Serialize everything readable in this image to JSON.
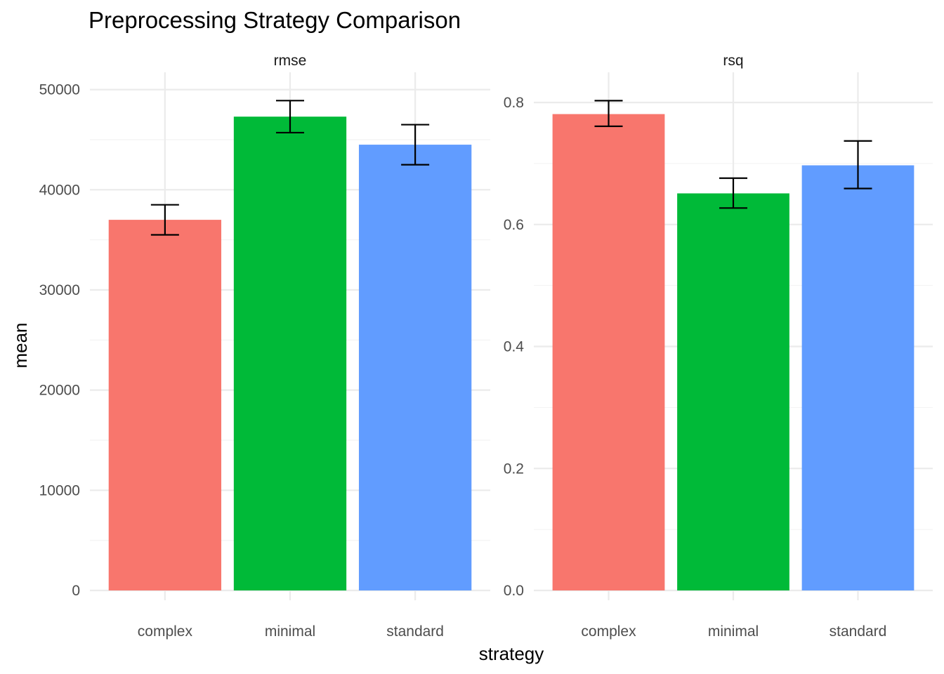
{
  "chart_data": {
    "type": "bar",
    "title": "Preprocessing Strategy Comparison",
    "xlabel": "strategy",
    "ylabel": "mean",
    "grid": true,
    "legend": "none",
    "colors": {
      "complex": "#F8766D",
      "minimal": "#00BA38",
      "standard": "#619CFF"
    },
    "categories": [
      "complex",
      "minimal",
      "standard"
    ],
    "panels": [
      {
        "strip": "rmse",
        "ylim": [
          0,
          50000
        ],
        "y_ticks": [
          0,
          10000,
          20000,
          30000,
          40000,
          50000
        ],
        "y_tick_labels": [
          "0",
          "10000",
          "20000",
          "30000",
          "40000",
          "50000"
        ],
        "values": [
          37000,
          47300,
          44500
        ],
        "error_low": [
          35500,
          45700,
          42500
        ],
        "error_high": [
          38500,
          48900,
          46500
        ]
      },
      {
        "strip": "rsq",
        "ylim": [
          0,
          0.8
        ],
        "y_ticks": [
          0,
          0.2,
          0.4,
          0.6,
          0.8
        ],
        "y_tick_labels": [
          "0.0",
          "0.2",
          "0.4",
          "0.6",
          "0.8"
        ],
        "values": [
          0.781,
          0.651,
          0.697
        ],
        "error_low": [
          0.761,
          0.627,
          0.659
        ],
        "error_high": [
          0.803,
          0.676,
          0.737
        ]
      }
    ]
  }
}
